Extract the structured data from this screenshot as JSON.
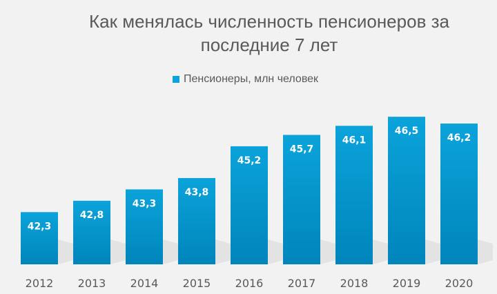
{
  "chart_data": {
    "type": "bar",
    "title": "Как менялась численность пенсионеров за последние 7 лет",
    "categories": [
      "2012",
      "2013",
      "2014",
      "2015",
      "2016",
      "2017",
      "2018",
      "2019",
      "2020"
    ],
    "series": [
      {
        "name": "Пенсионеры, млн человек",
        "values": [
          42.3,
          42.8,
          43.3,
          43.8,
          45.2,
          45.7,
          46.1,
          46.5,
          46.2
        ],
        "labels": [
          "42,3",
          "42,8",
          "43,3",
          "43,8",
          "45,2",
          "45,7",
          "46,1",
          "46,5",
          "46,2"
        ]
      }
    ],
    "ylim": [
      40,
      47
    ],
    "grid": false,
    "legend": "top",
    "colors": {
      "bar_top": "#0ba3da",
      "bar_bottom": "#0085bb",
      "text": "#595959"
    }
  }
}
